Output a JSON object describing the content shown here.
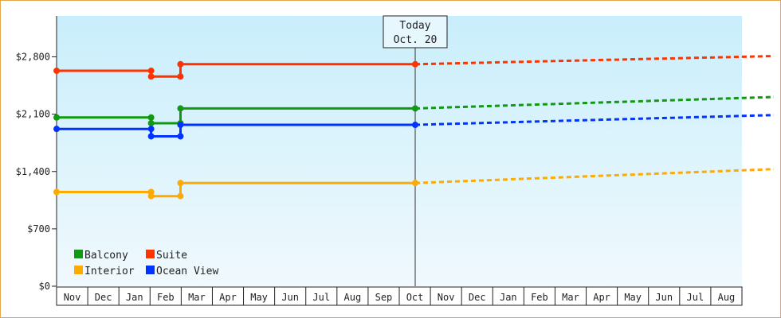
{
  "chart_data": {
    "type": "line",
    "title": "",
    "xlabel": "",
    "ylabel": "",
    "ylim": [
      0,
      3300
    ],
    "y_ticks": [
      0,
      700,
      1400,
      2100,
      2800
    ],
    "y_tick_labels": [
      "$0",
      "$700",
      "$1,400",
      "$2,100",
      "$2,800"
    ],
    "x_tick_labels": [
      "Nov",
      "Dec",
      "Jan",
      "Feb",
      "Mar",
      "Apr",
      "May",
      "Jun",
      "Jul",
      "Aug",
      "Sep",
      "Oct",
      "Nov",
      "Dec",
      "Jan",
      "Feb",
      "Mar",
      "Apr",
      "May",
      "Jun",
      "Jul",
      "Aug"
    ],
    "grid": false,
    "legend_position": "bottom-left",
    "today_index": 11,
    "callout": {
      "line1": "Today",
      "line2": "Oct. 20"
    },
    "series": [
      {
        "name": "Balcony",
        "color": "#119911",
        "history": [
          [
            0,
            2060
          ],
          [
            2.9,
            2060
          ],
          [
            2.9,
            1990
          ],
          [
            3.8,
            1990
          ],
          [
            3.8,
            2170
          ],
          [
            11.0,
            2170
          ]
        ],
        "forecast": [
          [
            11.0,
            2170
          ],
          [
            22.0,
            2310
          ]
        ]
      },
      {
        "name": "Suite",
        "color": "#ff3300",
        "history": [
          [
            0,
            2630
          ],
          [
            2.9,
            2630
          ],
          [
            2.9,
            2560
          ],
          [
            3.8,
            2560
          ],
          [
            3.8,
            2710
          ],
          [
            11.0,
            2710
          ]
        ],
        "forecast": [
          [
            11.0,
            2710
          ],
          [
            22.0,
            2810
          ]
        ]
      },
      {
        "name": "Interior",
        "color": "#ffaa00",
        "history": [
          [
            0,
            1150
          ],
          [
            2.9,
            1150
          ],
          [
            2.9,
            1100
          ],
          [
            3.8,
            1100
          ],
          [
            3.8,
            1260
          ],
          [
            11.0,
            1260
          ]
        ],
        "forecast": [
          [
            11.0,
            1260
          ],
          [
            22.0,
            1430
          ]
        ]
      },
      {
        "name": "Ocean View",
        "color": "#0033ff",
        "history": [
          [
            0,
            1920
          ],
          [
            2.9,
            1920
          ],
          [
            2.9,
            1830
          ],
          [
            3.8,
            1830
          ],
          [
            3.8,
            1970
          ],
          [
            11.0,
            1970
          ]
        ],
        "forecast": [
          [
            11.0,
            1970
          ],
          [
            22.0,
            2090
          ]
        ]
      }
    ]
  }
}
